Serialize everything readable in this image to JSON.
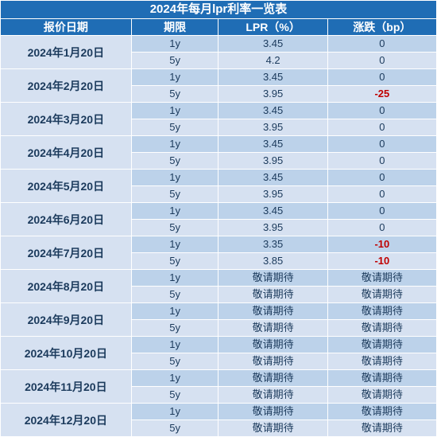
{
  "title": "2024年每月lpr利率一览表",
  "headers": [
    "报价日期",
    "期限",
    "LPR（%）",
    "涨跌（bp）"
  ],
  "colors": {
    "header_bg": "#1f6db5",
    "header_fg": "#ffffff",
    "row_light_bg": "#bcd2ea",
    "row_dark_bg": "#d6e1f1",
    "text": "#1b3a5c",
    "neg": "#c00000",
    "border": "#ffffff"
  },
  "col_widths": [
    "30%",
    "20%",
    "25%",
    "25%"
  ],
  "rows": [
    {
      "date": "2024年1月20日",
      "sub": [
        {
          "term": "1y",
          "lpr": "3.45",
          "chg": "0"
        },
        {
          "term": "5y",
          "lpr": "4.2",
          "chg": "0"
        }
      ]
    },
    {
      "date": "2024年2月20日",
      "sub": [
        {
          "term": "1y",
          "lpr": "3.45",
          "chg": "0"
        },
        {
          "term": "5y",
          "lpr": "3.95",
          "chg": "-25"
        }
      ]
    },
    {
      "date": "2024年3月20日",
      "sub": [
        {
          "term": "1y",
          "lpr": "3.45",
          "chg": "0"
        },
        {
          "term": "5y",
          "lpr": "3.95",
          "chg": "0"
        }
      ]
    },
    {
      "date": "2024年4月20日",
      "sub": [
        {
          "term": "1y",
          "lpr": "3.45",
          "chg": "0"
        },
        {
          "term": "5y",
          "lpr": "3.95",
          "chg": "0"
        }
      ]
    },
    {
      "date": "2024年5月20日",
      "sub": [
        {
          "term": "1y",
          "lpr": "3.45",
          "chg": "0"
        },
        {
          "term": "5y",
          "lpr": "3.95",
          "chg": "0"
        }
      ]
    },
    {
      "date": "2024年6月20日",
      "sub": [
        {
          "term": "1y",
          "lpr": "3.45",
          "chg": "0"
        },
        {
          "term": "5y",
          "lpr": "3.95",
          "chg": "0"
        }
      ]
    },
    {
      "date": "2024年7月20日",
      "sub": [
        {
          "term": "1y",
          "lpr": "3.35",
          "chg": "-10"
        },
        {
          "term": "5y",
          "lpr": "3.85",
          "chg": "-10"
        }
      ]
    },
    {
      "date": "2024年8月20日",
      "sub": [
        {
          "term": "1y",
          "lpr": "敬请期待",
          "chg": "敬请期待"
        },
        {
          "term": "5y",
          "lpr": "敬请期待",
          "chg": "敬请期待"
        }
      ]
    },
    {
      "date": "2024年9月20日",
      "sub": [
        {
          "term": "1y",
          "lpr": "敬请期待",
          "chg": "敬请期待"
        },
        {
          "term": "5y",
          "lpr": "敬请期待",
          "chg": "敬请期待"
        }
      ]
    },
    {
      "date": "2024年10月20日",
      "sub": [
        {
          "term": "1y",
          "lpr": "敬请期待",
          "chg": "敬请期待"
        },
        {
          "term": "5y",
          "lpr": "敬请期待",
          "chg": "敬请期待"
        }
      ]
    },
    {
      "date": "2024年11月20日",
      "sub": [
        {
          "term": "1y",
          "lpr": "敬请期待",
          "chg": "敬请期待"
        },
        {
          "term": "5y",
          "lpr": "敬请期待",
          "chg": "敬请期待"
        }
      ]
    },
    {
      "date": "2024年12月20日",
      "sub": [
        {
          "term": "1y",
          "lpr": "敬请期待",
          "chg": "敬请期待"
        },
        {
          "term": "5y",
          "lpr": "敬请期待",
          "chg": "敬请期待"
        }
      ]
    }
  ]
}
